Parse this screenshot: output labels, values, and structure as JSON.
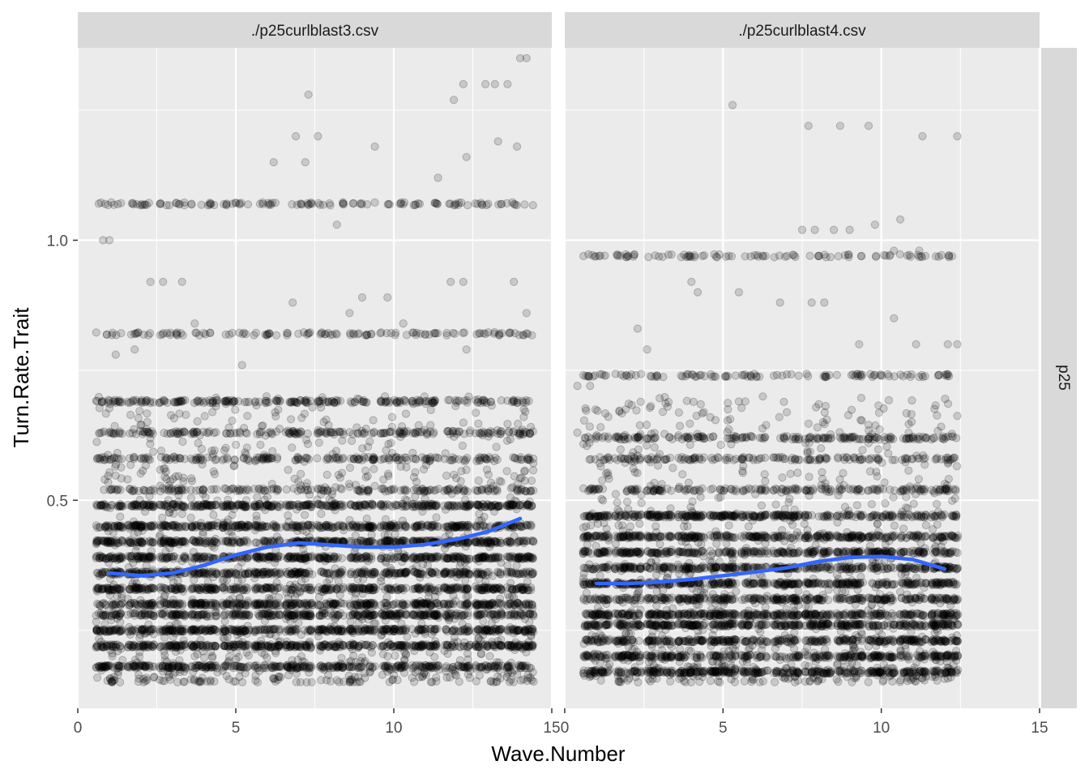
{
  "chart_data": {
    "type": "scatter",
    "xlabel": "Wave.Number",
    "ylabel": "Turn.Rate.Trait",
    "row_strip": "p25",
    "x_ticks": [
      0,
      5,
      10,
      15
    ],
    "y_ticks": [
      0.5,
      1.0
    ],
    "y_tick_labels": [
      "0.5",
      "1.0"
    ],
    "xlim": [
      0,
      15
    ],
    "ylim": [
      0.1,
      1.37
    ],
    "grid": true,
    "point_color": "#000000",
    "point_alpha": 0.15,
    "smooth_color": "#3366FF",
    "panels": [
      {
        "title": "./p25curlblast3.csv",
        "x_range": [
          1,
          14
        ],
        "trend": [
          [
            1,
            0.36
          ],
          [
            2,
            0.355
          ],
          [
            3,
            0.36
          ],
          [
            4,
            0.375
          ],
          [
            5,
            0.395
          ],
          [
            6,
            0.41
          ],
          [
            7,
            0.418
          ],
          [
            8,
            0.414
          ],
          [
            9,
            0.41
          ],
          [
            10,
            0.41
          ],
          [
            11,
            0.415
          ],
          [
            12,
            0.425
          ],
          [
            13,
            0.44
          ],
          [
            14,
            0.465
          ]
        ],
        "bands": [
          0.18,
          0.22,
          0.25,
          0.28,
          0.3,
          0.33,
          0.36,
          0.39,
          0.42,
          0.45,
          0.49,
          0.52,
          0.58,
          0.63,
          0.69,
          0.82,
          1.07
        ],
        "outliers": [
          [
            0.8,
            1.0
          ],
          [
            1.0,
            1.0
          ],
          [
            1.2,
            0.78
          ],
          [
            1.8,
            0.79
          ],
          [
            2.3,
            0.92
          ],
          [
            2.7,
            0.92
          ],
          [
            3.3,
            0.92
          ],
          [
            3.7,
            0.84
          ],
          [
            5.2,
            0.76
          ],
          [
            6.8,
            0.88
          ],
          [
            7.3,
            1.28
          ],
          [
            6.9,
            1.2
          ],
          [
            7.6,
            1.2
          ],
          [
            6.2,
            1.15
          ],
          [
            7.2,
            1.15
          ],
          [
            8.2,
            1.03
          ],
          [
            8.6,
            0.86
          ],
          [
            9.0,
            0.89
          ],
          [
            9.4,
            1.18
          ],
          [
            9.8,
            0.89
          ],
          [
            10.3,
            0.84
          ],
          [
            11.4,
            1.12
          ],
          [
            11.9,
            1.27
          ],
          [
            12.2,
            1.3
          ],
          [
            12.9,
            1.3
          ],
          [
            13.2,
            1.3
          ],
          [
            13.6,
            1.3
          ],
          [
            14.0,
            1.35
          ],
          [
            14.2,
            1.35
          ],
          [
            13.3,
            1.19
          ],
          [
            13.9,
            1.18
          ],
          [
            12.3,
            1.16
          ],
          [
            11.8,
            0.92
          ],
          [
            12.2,
            0.92
          ],
          [
            13.8,
            0.92
          ],
          [
            12.3,
            0.79
          ],
          [
            14.2,
            0.86
          ],
          [
            3.6,
            1.07
          ],
          [
            4.2,
            1.07
          ]
        ],
        "spread_band_count": 1200
      },
      {
        "title": "./p25curlblast4.csv",
        "x_range": [
          1,
          12
        ],
        "trend": [
          [
            1,
            0.34
          ],
          [
            2,
            0.34
          ],
          [
            3,
            0.343
          ],
          [
            4,
            0.348
          ],
          [
            5,
            0.355
          ],
          [
            6,
            0.362
          ],
          [
            7,
            0.37
          ],
          [
            8,
            0.382
          ],
          [
            9,
            0.39
          ],
          [
            10,
            0.392
          ],
          [
            11,
            0.386
          ],
          [
            12,
            0.368
          ]
        ],
        "bands": [
          0.17,
          0.2,
          0.23,
          0.26,
          0.28,
          0.31,
          0.34,
          0.37,
          0.4,
          0.43,
          0.47,
          0.52,
          0.58,
          0.62,
          0.74,
          0.97
        ],
        "outliers": [
          [
            5.3,
            1.26
          ],
          [
            7.7,
            1.22
          ],
          [
            8.7,
            1.22
          ],
          [
            9.6,
            1.22
          ],
          [
            11.3,
            1.2
          ],
          [
            12.4,
            1.2
          ],
          [
            7.5,
            1.02
          ],
          [
            7.9,
            1.02
          ],
          [
            8.5,
            1.02
          ],
          [
            9.0,
            1.02
          ],
          [
            9.8,
            1.03
          ],
          [
            10.6,
            1.04
          ],
          [
            10.4,
            0.98
          ],
          [
            11.2,
            0.98
          ],
          [
            4.0,
            0.92
          ],
          [
            4.2,
            0.9
          ],
          [
            5.5,
            0.9
          ],
          [
            6.8,
            0.88
          ],
          [
            7.8,
            0.88
          ],
          [
            8.2,
            0.88
          ],
          [
            10.4,
            0.85
          ],
          [
            2.3,
            0.83
          ],
          [
            2.6,
            0.79
          ],
          [
            9.3,
            0.8
          ],
          [
            11.1,
            0.8
          ],
          [
            12.1,
            0.8
          ],
          [
            12.4,
            0.8
          ],
          [
            0.4,
            0.72
          ],
          [
            0.8,
            0.72
          ],
          [
            1.3,
            0.74
          ],
          [
            0.4,
            0.63
          ],
          [
            3.1,
            0.67
          ],
          [
            5.5,
            0.69
          ]
        ],
        "spread_band_count": 1000
      }
    ]
  }
}
